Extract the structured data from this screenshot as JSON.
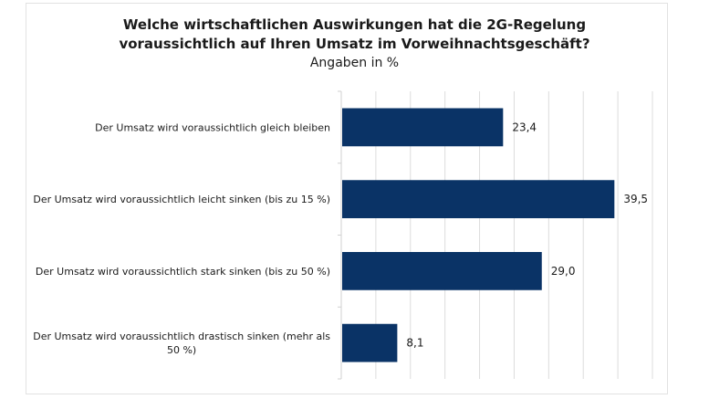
{
  "chart_data": {
    "type": "bar",
    "orientation": "horizontal",
    "title": "Welche wirtschaftlichen Auswirkungen hat die 2G-Regelung voraussichtlich auf Ihren Umsatz im Vorweihnachtsgeschäft?",
    "title_lines": [
      "Welche wirtschaftlichen Auswirkungen hat die 2G-Regelung",
      "voraussichtlich auf Ihren Umsatz im Vorweihnachtsgeschäft?"
    ],
    "subtitle": "Angaben in %",
    "xlabel": "",
    "ylabel": "",
    "categories": [
      "Der Umsatz wird voraussichtlich gleich bleiben",
      "Der Umsatz wird voraussichtlich leicht sinken (bis zu 15 %)",
      "Der Umsatz wird voraussichtlich stark sinken (bis zu 50 %)",
      "Der Umsatz wird voraussichtlich drastisch sinken (mehr als 50 %)"
    ],
    "category_label_lines": [
      [
        "Der Umsatz wird voraussichtlich gleich bleiben"
      ],
      [
        "Der Umsatz wird voraussichtlich leicht sinken (bis zu 15 %)"
      ],
      [
        "Der Umsatz wird voraussichtlich stark sinken (bis zu 50 %)"
      ],
      [
        "Der Umsatz wird voraussichtlich drastisch sinken (mehr als",
        "50 %)"
      ]
    ],
    "values": [
      23.4,
      39.5,
      29.0,
      8.1
    ],
    "value_labels": [
      "23,4",
      "39,5",
      "29,0",
      "8,1"
    ],
    "xlim": [
      0,
      45
    ],
    "grid_step": 5,
    "grid": true,
    "x_tick_labels_visible": false,
    "legend": "none",
    "bar_color": "#0a3366"
  }
}
